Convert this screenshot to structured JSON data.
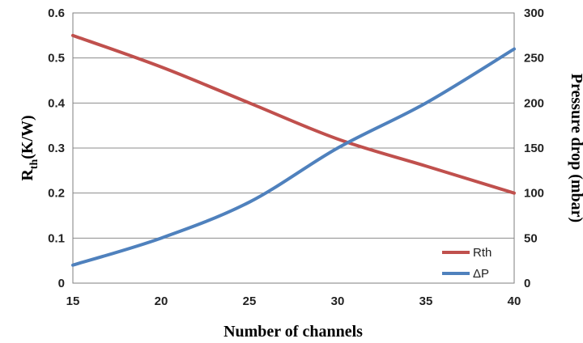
{
  "chart_data": {
    "type": "line",
    "title": "",
    "xlabel": "Number of channels",
    "ylabel_left_main": "R",
    "ylabel_left_sub": "th",
    "ylabel_left_rest": "(K/W)",
    "ylabel_right": "Pressure drop (mbar)",
    "xlim": [
      15,
      40
    ],
    "ylim_left": [
      0,
      0.6
    ],
    "ylim_right": [
      0,
      300
    ],
    "x_ticks": [
      "15",
      "20",
      "25",
      "30",
      "35",
      "40"
    ],
    "y_left_ticks": [
      "0",
      "0.1",
      "0.2",
      "0.3",
      "0.4",
      "0.5",
      "0.6"
    ],
    "y_right_ticks": [
      "0",
      "50",
      "100",
      "150",
      "200",
      "250",
      "300"
    ],
    "grid": true,
    "legend_position": "bottom-right",
    "series": [
      {
        "name": "Rth",
        "axis": "left",
        "color": "#c0504d",
        "x": [
          15,
          20,
          25,
          30,
          35,
          40
        ],
        "y": [
          0.55,
          0.48,
          0.4,
          0.32,
          0.26,
          0.2
        ]
      },
      {
        "name": "ΔP",
        "axis": "right",
        "color": "#4f81bd",
        "x": [
          15,
          20,
          25,
          30,
          35,
          40
        ],
        "y": [
          20,
          50,
          90,
          150,
          200,
          260
        ]
      }
    ]
  }
}
